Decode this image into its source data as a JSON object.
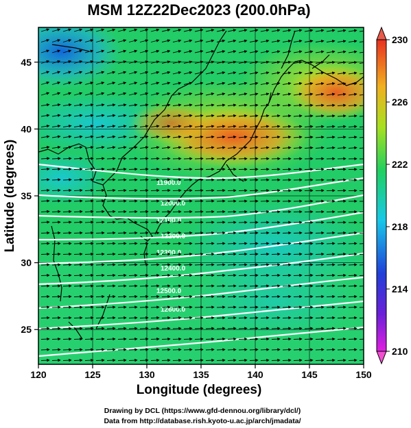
{
  "title": "MSM 12Z22Dec2023 (200.0hPa)",
  "map": {
    "x_axis": {
      "label": "Longitude (degrees)",
      "range": [
        120,
        150
      ],
      "ticks": [
        "120",
        "125",
        "130",
        "135",
        "140",
        "145",
        "150"
      ]
    },
    "y_axis": {
      "label": "Latitude  (degrees)",
      "range": [
        22.4,
        47.6
      ],
      "ticks": [
        "25",
        "30",
        "35",
        "40",
        "45"
      ]
    },
    "colorbar": {
      "range": [
        210,
        230
      ],
      "ticks": [
        "210",
        "214",
        "218",
        "222",
        "226",
        "230"
      ],
      "colors": [
        "#e01fe0",
        "#2040d8",
        "#18c8e8",
        "#20d060",
        "#a8e020",
        "#f0b020",
        "#e83020"
      ]
    },
    "contour_labels": [
      "11900.0",
      "12000.0",
      "12100.0",
      "12200.0",
      "12300.0",
      "12400.0",
      "12500.0",
      "12600.0"
    ],
    "grid": true
  },
  "credits": {
    "line1": "Drawing by DCL (https://www.gfd-dennou.org/library/dcl/)",
    "line2": "Data from http://database.rish.kyoto-u.ac.jp/arch/jmadata/"
  }
}
